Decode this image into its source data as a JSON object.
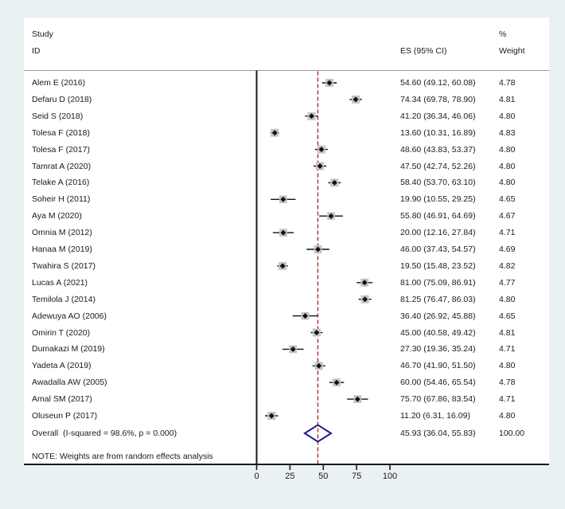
{
  "chart_data": {
    "type": "forest",
    "title": "",
    "header": {
      "study_col_line1": "Study",
      "study_col_line2": "ID",
      "es_col": "ES (95% CI)",
      "weight_col_line1": "%",
      "weight_col_line2": "Weight"
    },
    "x_axis": {
      "ticks": [
        0,
        25,
        50,
        75,
        100
      ],
      "range": [
        0,
        100
      ],
      "grid": false
    },
    "null_line_x": 0,
    "overall_ref_line_x": 45.93,
    "studies": [
      {
        "label": "Alem E (2016)",
        "es": 54.6,
        "lo": 49.12,
        "hi": 60.08,
        "weight": 4.78,
        "es_text": "54.60 (49.12, 60.08)",
        "weight_text": "4.78"
      },
      {
        "label": "Defaru D (2018)",
        "es": 74.34,
        "lo": 69.78,
        "hi": 78.9,
        "weight": 4.81,
        "es_text": "74.34 (69.78, 78.90)",
        "weight_text": "4.81"
      },
      {
        "label": "Seid S (2018)",
        "es": 41.2,
        "lo": 36.34,
        "hi": 46.06,
        "weight": 4.8,
        "es_text": "41.20 (36.34, 46.06)",
        "weight_text": "4.80"
      },
      {
        "label": "Tolesa F (2018)",
        "es": 13.6,
        "lo": 10.31,
        "hi": 16.89,
        "weight": 4.83,
        "es_text": "13.60 (10.31, 16.89)",
        "weight_text": "4.83"
      },
      {
        "label": "Tolesa F (2017)",
        "es": 48.6,
        "lo": 43.83,
        "hi": 53.37,
        "weight": 4.8,
        "es_text": "48.60 (43.83, 53.37)",
        "weight_text": "4.80"
      },
      {
        "label": "Tamrat A (2020)",
        "es": 47.5,
        "lo": 42.74,
        "hi": 52.26,
        "weight": 4.8,
        "es_text": "47.50 (42.74, 52.26)",
        "weight_text": "4.80"
      },
      {
        "label": "Telake A (2016)",
        "es": 58.4,
        "lo": 53.7,
        "hi": 63.1,
        "weight": 4.8,
        "es_text": "58.40 (53.70, 63.10)",
        "weight_text": "4.80"
      },
      {
        "label": "Soheir H (2011)",
        "es": 19.9,
        "lo": 10.55,
        "hi": 29.25,
        "weight": 4.65,
        "es_text": "19.90 (10.55, 29.25)",
        "weight_text": "4.65"
      },
      {
        "label": "Aya M (2020)",
        "es": 55.8,
        "lo": 46.91,
        "hi": 64.69,
        "weight": 4.67,
        "es_text": "55.80 (46.91, 64.69)",
        "weight_text": "4.67"
      },
      {
        "label": "Omnia M (2012)",
        "es": 20.0,
        "lo": 12.16,
        "hi": 27.84,
        "weight": 4.71,
        "es_text": "20.00 (12.16, 27.84)",
        "weight_text": "4.71"
      },
      {
        "label": "Hanaa M (2019)",
        "es": 46.0,
        "lo": 37.43,
        "hi": 54.57,
        "weight": 4.69,
        "es_text": "46.00 (37.43, 54.57)",
        "weight_text": "4.69"
      },
      {
        "label": "Twahira S (2017)",
        "es": 19.5,
        "lo": 15.48,
        "hi": 23.52,
        "weight": 4.82,
        "es_text": "19.50 (15.48, 23.52)",
        "weight_text": "4.82"
      },
      {
        "label": "Lucas A (2021)",
        "es": 81.0,
        "lo": 75.09,
        "hi": 86.91,
        "weight": 4.77,
        "es_text": "81.00 (75.09, 86.91)",
        "weight_text": "4.77"
      },
      {
        "label": "Temilola J (2014)",
        "es": 81.25,
        "lo": 76.47,
        "hi": 86.03,
        "weight": 4.8,
        "es_text": "81.25 (76.47, 86.03)",
        "weight_text": "4.80"
      },
      {
        "label": "Adewuya AO (2006)",
        "es": 36.4,
        "lo": 26.92,
        "hi": 45.88,
        "weight": 4.65,
        "es_text": "36.40 (26.92, 45.88)",
        "weight_text": "4.65"
      },
      {
        "label": "Omirin T (2020)",
        "es": 45.0,
        "lo": 40.58,
        "hi": 49.42,
        "weight": 4.81,
        "es_text": "45.00 (40.58, 49.42)",
        "weight_text": "4.81"
      },
      {
        "label": "Dumakazi M (2019)",
        "es": 27.3,
        "lo": 19.36,
        "hi": 35.24,
        "weight": 4.71,
        "es_text": "27.30 (19.36, 35.24)",
        "weight_text": "4.71"
      },
      {
        "label": "Yadeta A (2019)",
        "es": 46.7,
        "lo": 41.9,
        "hi": 51.5,
        "weight": 4.8,
        "es_text": "46.70 (41.90, 51.50)",
        "weight_text": "4.80"
      },
      {
        "label": "Awadalla AW (2005)",
        "es": 60.0,
        "lo": 54.46,
        "hi": 65.54,
        "weight": 4.78,
        "es_text": "60.00 (54.46, 65.54)",
        "weight_text": "4.78"
      },
      {
        "label": "Amal SM (2017)",
        "es": 75.7,
        "lo": 67.86,
        "hi": 83.54,
        "weight": 4.71,
        "es_text": "75.70 (67.86, 83.54)",
        "weight_text": "4.71"
      },
      {
        "label": "Oluseun P (2017)",
        "es": 11.2,
        "lo": 6.31,
        "hi": 16.09,
        "weight": 4.8,
        "es_text": "11.20 (6.31, 16.09)",
        "weight_text": "4.80"
      }
    ],
    "overall": {
      "label": "Overall  (I-squared = 98.6%, p = 0.000)",
      "es": 45.93,
      "lo": 36.04,
      "hi": 55.83,
      "es_text": "45.93 (36.04, 55.83)",
      "weight_text": "100.00"
    },
    "note": "NOTE: Weights are from random effects analysis",
    "colors": {
      "background": "#eaf1f2",
      "plot_background": "#ffffff",
      "axis": "#1a1a1a",
      "separator": "#9a9a9a",
      "ref_line": "#b23537",
      "ci_line": "#111111",
      "marker": "#111111",
      "weight_box": "#c4c4c4",
      "diamond": "#1b1b8e",
      "text": "#1a1a1a"
    }
  }
}
